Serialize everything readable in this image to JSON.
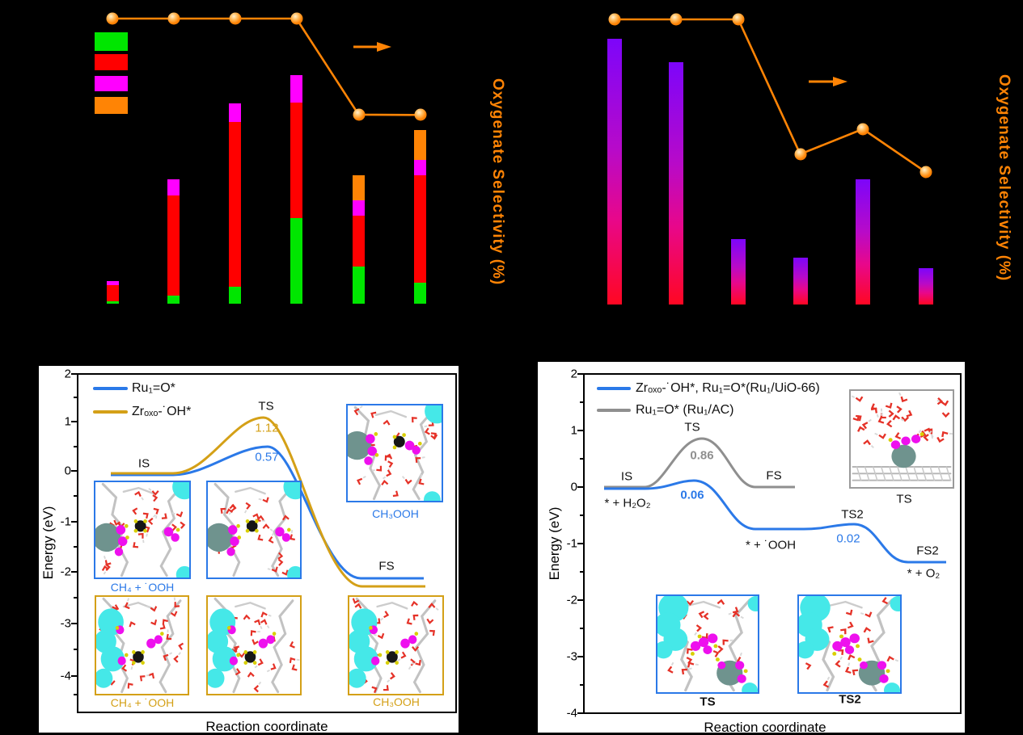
{
  "figure": {
    "panel_a": {
      "right_axis_label": "Oxygenate Selectivity (%)",
      "legend_swatches": [
        {
          "name": "green",
          "color": "#00e600"
        },
        {
          "name": "red",
          "color": "#ff0000"
        },
        {
          "name": "magenta",
          "color": "#ff00ff"
        },
        {
          "name": "orange",
          "color": "#ff8405"
        }
      ],
      "chart_data": {
        "type": "bar",
        "stacked": true,
        "axis_note": "axis tick labels are not visible in the dark figure; values are % of full plot height",
        "categories": [
          "bar-1",
          "bar-2",
          "bar-3",
          "bar-4",
          "bar-5",
          "bar-6"
        ],
        "series": [
          {
            "name": "green",
            "color": "#00e600",
            "values": [
              0.8,
              2.8,
              5.9,
              30.0,
              13.0,
              7.4
            ]
          },
          {
            "name": "red",
            "color": "#ff0000",
            "values": [
              5.7,
              35.1,
              57.8,
              40.5,
              17.8,
              37.7
            ]
          },
          {
            "name": "magenta",
            "color": "#ff00ff",
            "values": [
              1.4,
              5.7,
              6.5,
              9.6,
              5.4,
              5.4
            ]
          },
          {
            "name": "orange",
            "color": "#ff8405",
            "values": [
              0,
              0,
              0,
              0,
              8.8,
              10.5
            ]
          }
        ],
        "line_series": {
          "name": "Oxygenate Selectivity (%)",
          "color": "#ff8405",
          "values": [
            100,
            100,
            100,
            100,
            66.3,
            66.2
          ]
        },
        "legend_position": "upper-left"
      }
    },
    "panel_b": {
      "right_axis_label": "Oxygenate Selectivity (%)",
      "chart_data": {
        "type": "bar",
        "bar_gradient": [
          "#7d05fa",
          "#d808a0",
          "#ff0722"
        ],
        "axis_note": "axis tick labels are not visible in the dark figure; values are % of full plot height",
        "categories": [
          "bar-1",
          "bar-2",
          "bar-3",
          "bar-4",
          "bar-5",
          "bar-6"
        ],
        "values": [
          93.3,
          85.0,
          23.1,
          16.6,
          44.0,
          12.9
        ],
        "line_series": {
          "name": "Oxygenate Selectivity (%)",
          "color": "#ff8405",
          "values": [
            100,
            100,
            100,
            52.8,
            61.6,
            46.6
          ]
        }
      }
    },
    "panel_c": {
      "ylabel": "Energy (eV)",
      "xlabel": "Reaction coordinate",
      "yticks": [
        "2",
        "1",
        "0",
        "-1",
        "-2",
        "-3",
        "-4"
      ],
      "legend": [
        {
          "label": "Ru₁=O*",
          "color": "#2b79e8"
        },
        {
          "label": "Zrₒₓₒ-˙OH*",
          "color": "#d4a017"
        }
      ],
      "labels": {
        "is": "IS",
        "ts": "TS",
        "fs": "FS",
        "barrier_gold": "1.12",
        "barrier_blue": "0.57",
        "inset_blue_left": "CH₄ + ˙OOH",
        "inset_blue_right": "CH₃OOH",
        "inset_gold_left": "CH₄ + ˙OOH",
        "inset_gold_right": "CH₃OOH"
      },
      "chart_data": {
        "type": "line",
        "xlabel": "Reaction coordinate",
        "ylabel": "Energy (eV)",
        "ylim": [
          -4,
          2
        ],
        "series": [
          {
            "name": "Ru₁=O*",
            "color": "#2b79e8",
            "states": [
              "IS",
              "TS",
              "FS"
            ],
            "energies": [
              0,
              0.57,
              -2.15
            ]
          },
          {
            "name": "Zrₒₓₒ-˙OH*",
            "color": "#d4a017",
            "states": [
              "IS",
              "TS",
              "FS"
            ],
            "energies": [
              0,
              1.12,
              -2.3
            ]
          }
        ],
        "legend_position": "upper-left"
      }
    },
    "panel_d": {
      "ylabel": "Energy (eV)",
      "xlabel": "Reaction coordinate",
      "yticks": [
        "2",
        "1",
        "0",
        "-1",
        "-2",
        "-3",
        "-4"
      ],
      "legend": [
        {
          "label": "Zrₒₓₒ-˙OH*, Ru₁=O*(Ru₁/UiO-66)",
          "color": "#2b79e8"
        },
        {
          "label": "Ru₁=O* (Ru₁/AC)",
          "color": "#8f8f8f"
        }
      ],
      "labels": {
        "is": "IS",
        "is_species": "* + H₂O₂",
        "ts": "TS",
        "ts_barrier": "0.86",
        "blue_barrier": "0.06",
        "fs": "FS",
        "mid_species": "* + ˙OOH",
        "ts2": "TS2",
        "ts2_barrier": "0.02",
        "fs2": "FS2",
        "fs2_species": "* + O₂",
        "inset_top_label": "TS",
        "inset_ts_label": "TS",
        "inset_ts2_label": "TS2"
      },
      "chart_data": {
        "type": "line",
        "xlabel": "Reaction coordinate",
        "ylabel": "Energy (eV)",
        "ylim": [
          -4,
          2
        ],
        "series": [
          {
            "name": "Zrₒₓₒ-˙OH*, Ru₁=O*(Ru₁/UiO-66)",
            "color": "#2b79e8",
            "states": [
              "IS (* + H₂O₂)",
              "TS",
              "* + ˙OOH",
              "TS2",
              "FS2 (* + O₂)"
            ],
            "energies": [
              0,
              0.06,
              -0.75,
              -0.73,
              -1.33
            ],
            "barriers": {
              "TS": 0.06,
              "TS2": 0.02
            }
          },
          {
            "name": "Ru₁=O* (Ru₁/AC)",
            "color": "#8f8f8f",
            "states": [
              "IS",
              "TS",
              "FS"
            ],
            "energies": [
              0,
              0.86,
              0
            ]
          }
        ],
        "legend_position": "upper-left"
      }
    }
  }
}
